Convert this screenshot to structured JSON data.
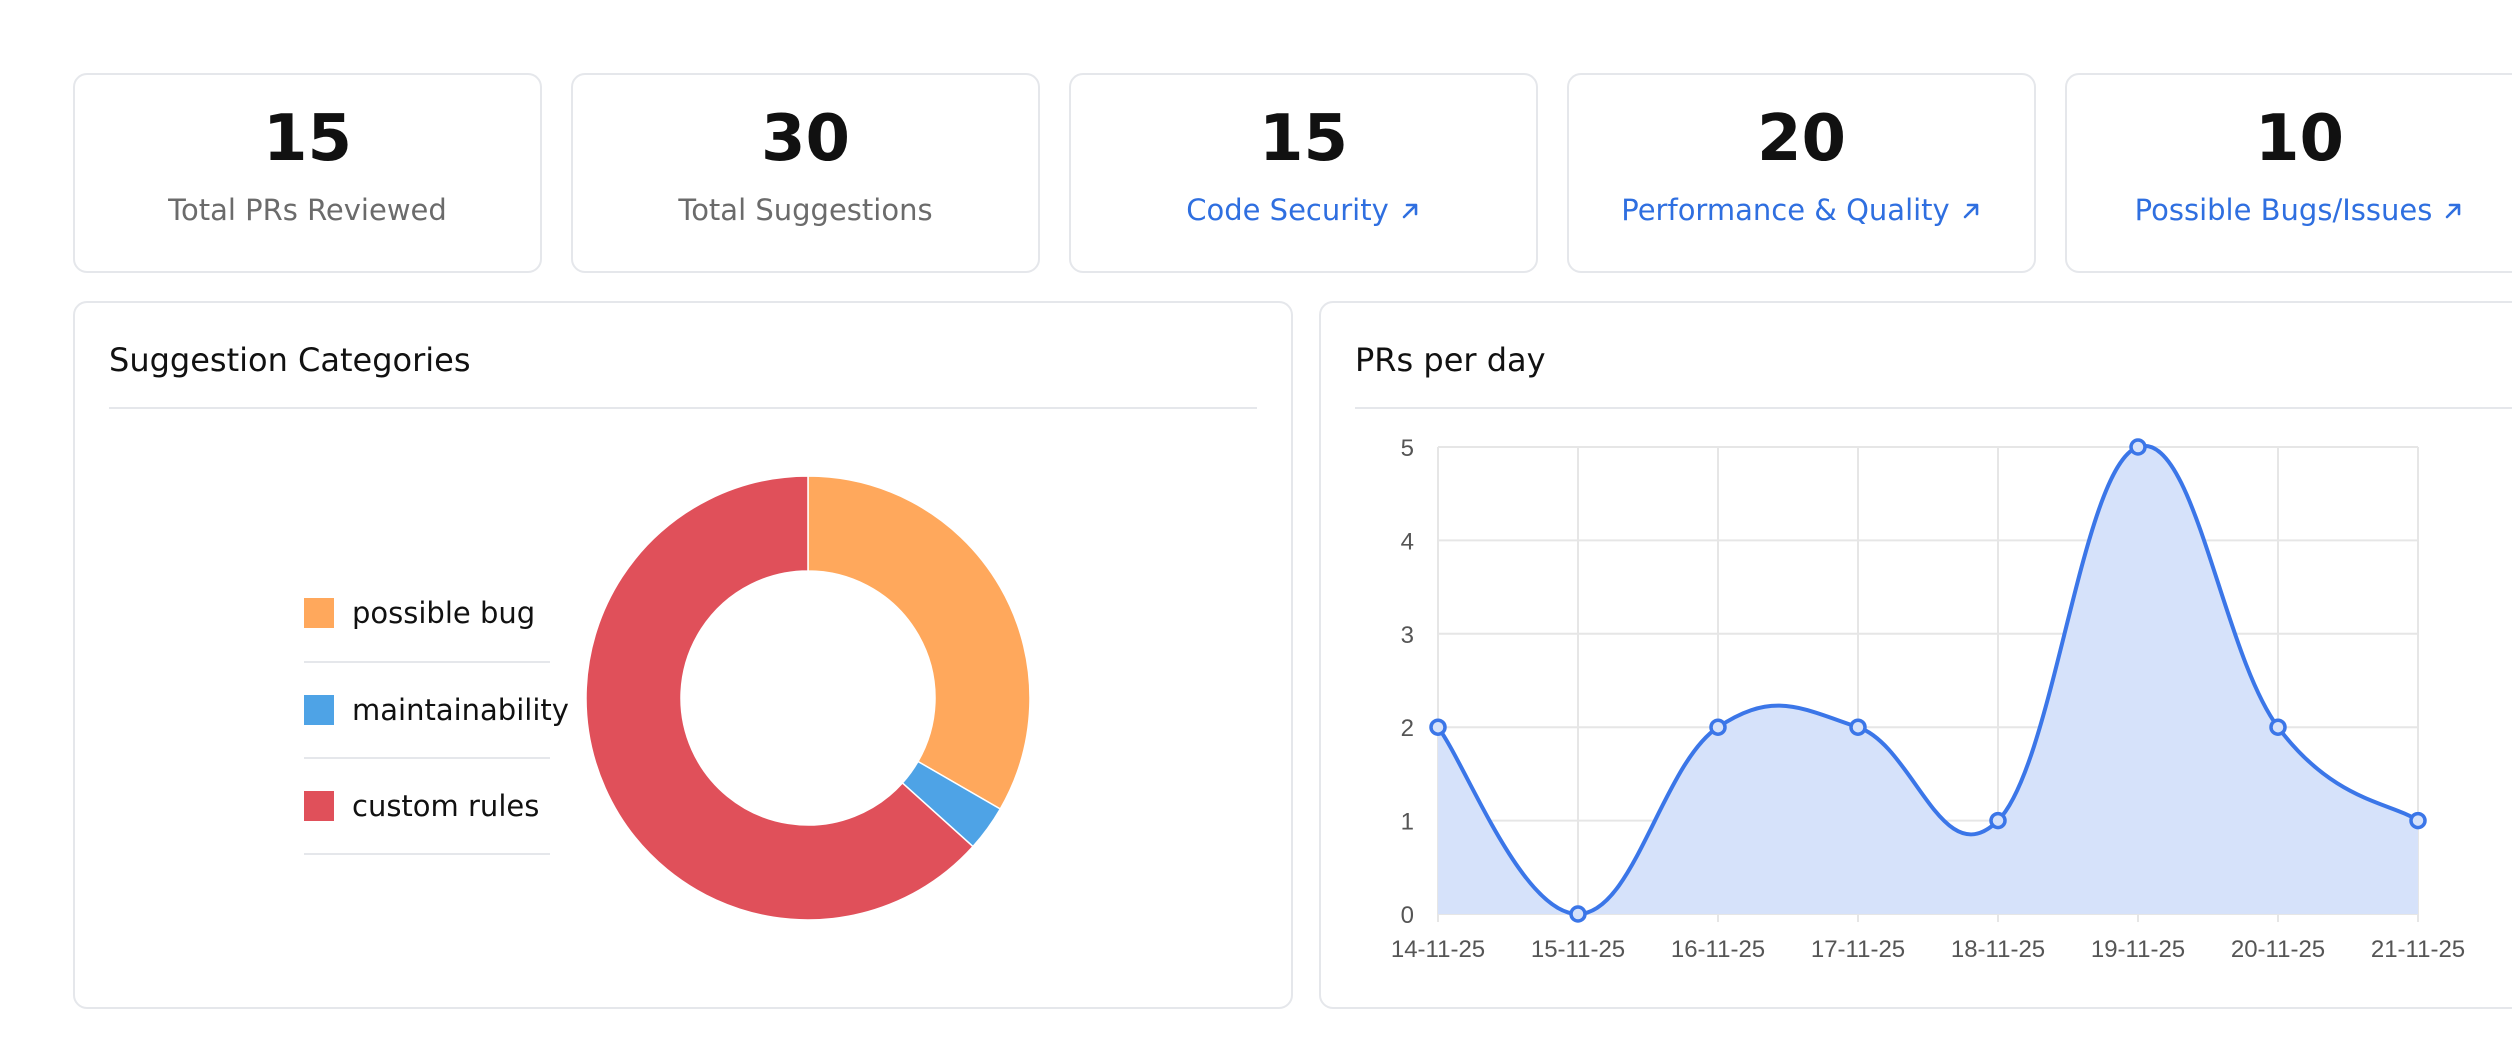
{
  "stats": [
    {
      "value": "15",
      "label": "Total PRs Reviewed",
      "link": false
    },
    {
      "value": "30",
      "label": "Total Suggestions",
      "link": false
    },
    {
      "value": "15",
      "label": "Code Security",
      "link": true
    },
    {
      "value": "20",
      "label": "Performance & Quality",
      "link": true
    },
    {
      "value": "10",
      "label": "Possible Bugs/Issues",
      "link": true
    }
  ],
  "suggestion_panel": {
    "title": "Suggestion Categories"
  },
  "prs_panel": {
    "title": "PRs per day"
  },
  "colors": {
    "link": "#2f6fe0",
    "possible_bug": "#ffa85c",
    "maintainability": "#4ea3e6",
    "custom_rules": "#e0505a",
    "line": "#3b76e8",
    "area": "#d6e2fa"
  },
  "chart_data": [
    {
      "type": "pie",
      "style": "doughnut",
      "title": "Suggestion Categories",
      "legend_position": "left",
      "categories": [
        "possible bug",
        "maintainability",
        "custom rules"
      ],
      "values": [
        10,
        1,
        19
      ]
    },
    {
      "type": "area",
      "title": "PRs per day",
      "x": [
        "14-11-25",
        "15-11-25",
        "16-11-25",
        "17-11-25",
        "18-11-25",
        "19-11-25",
        "20-11-25",
        "21-11-25"
      ],
      "values": [
        2,
        0,
        2,
        2,
        1,
        5,
        2,
        1
      ],
      "ylim": [
        0,
        5
      ],
      "yticks": [
        0,
        1,
        2,
        3,
        4,
        5
      ],
      "grid": true,
      "smooth": true
    }
  ]
}
